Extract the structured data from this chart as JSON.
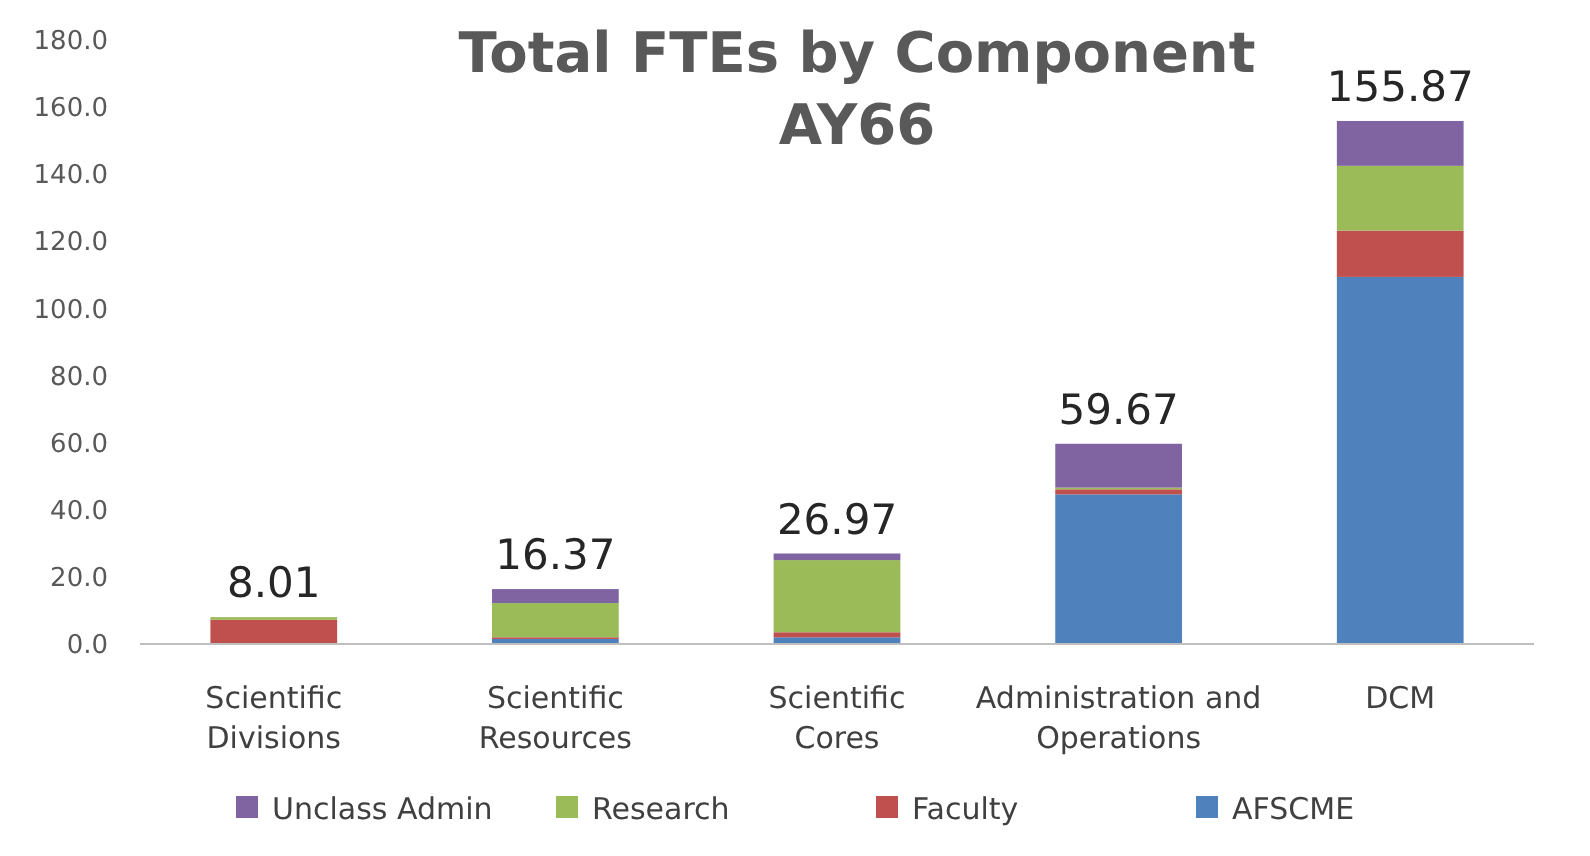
{
  "chart_data": {
    "type": "bar",
    "title": "Total FTEs by Component AY66",
    "stacked": true,
    "categories": [
      "Scientific Divisions",
      "Scientific Resources",
      "Scientific Cores",
      "Administration and Operations",
      "DCM"
    ],
    "series": [
      {
        "name": "AFSCME",
        "color": "#4f81bd",
        "values": [
          0,
          1.5,
          2,
          44.6,
          109.4
        ]
      },
      {
        "name": "Faculty",
        "color": "#c0504d",
        "values": [
          7.2,
          0.5,
          1.5,
          1.5,
          13.8
        ]
      },
      {
        "name": "Research",
        "color": "#9bbb59",
        "values": [
          0.81,
          10.2,
          21.5,
          0.5,
          19.3
        ]
      },
      {
        "name": "Unclass Admin",
        "color": "#8064a2",
        "values": [
          0,
          4.17,
          1.97,
          13.07,
          13.37
        ]
      }
    ],
    "totals": [
      "8.01",
      "16.37",
      "26.97",
      "59.67",
      "155.87"
    ],
    "ylim": [
      0,
      180
    ],
    "yticks": [
      {
        "value": 0,
        "label": "0.0"
      },
      {
        "value": 20,
        "label": "20.0"
      },
      {
        "value": 40,
        "label": "40.0"
      },
      {
        "value": 60,
        "label": "60.0"
      },
      {
        "value": 80,
        "label": "80.0"
      },
      {
        "value": 100,
        "label": "100.0"
      },
      {
        "value": 120,
        "label": "120.0"
      },
      {
        "value": 140,
        "label": "140.0"
      },
      {
        "value": 160,
        "label": "160.0"
      },
      {
        "value": 180,
        "label": "180.0"
      }
    ],
    "grid": false,
    "legend": "bottom"
  }
}
